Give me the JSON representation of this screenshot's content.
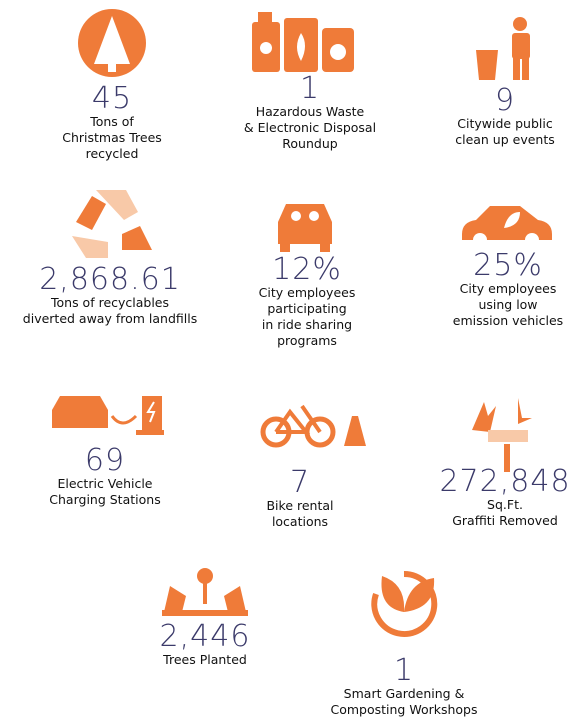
{
  "items": [
    {
      "value": "45",
      "label": [
        "Tons of",
        "Christmas Trees",
        "recycled"
      ]
    },
    {
      "value": "1",
      "label": [
        "Hazardous Waste",
        "& Electronic Disposal",
        "Roundup"
      ]
    },
    {
      "value": "9",
      "label": [
        "Citywide public",
        "clean up events"
      ]
    },
    {
      "value": "2,868.61",
      "label": [
        "Tons of recyclables",
        "diverted away from landfills"
      ]
    },
    {
      "value": "12%",
      "label": [
        "City employees",
        "participating",
        "in ride sharing",
        "programs"
      ]
    },
    {
      "value": "25%",
      "label": [
        "City employees",
        "using low",
        "emission vehicles"
      ]
    },
    {
      "value": "69",
      "label": [
        "Electric Vehicle",
        "Charging Stations"
      ]
    },
    {
      "value": "7",
      "label": [
        "Bike rental",
        "locations"
      ]
    },
    {
      "value": "272,848",
      "label": [
        "Sq.Ft.",
        "Graffiti Removed"
      ]
    },
    {
      "value": "2,446",
      "label": [
        "Trees Planted"
      ]
    },
    {
      "value": "1",
      "label": [
        "Smart Gardening &",
        "Composting Workshops"
      ]
    }
  ]
}
